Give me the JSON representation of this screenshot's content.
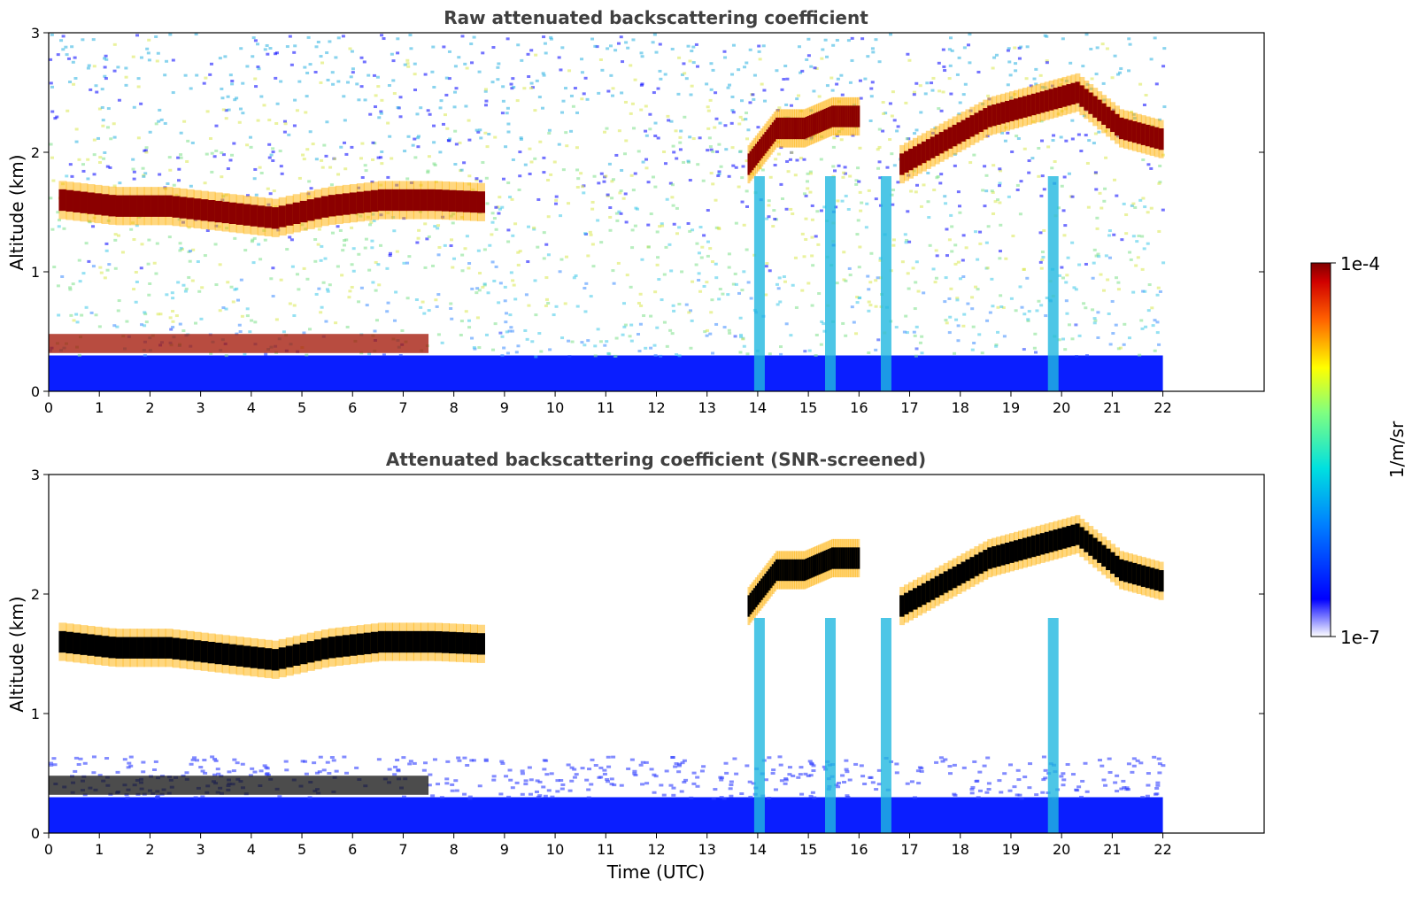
{
  "chart_data": [
    {
      "type": "heatmap",
      "title": "Raw attenuated backscattering coefficient",
      "xlabel": "",
      "ylabel": "Altitude (km)",
      "xlim": [
        0,
        24
      ],
      "ylim": [
        0,
        3
      ],
      "xticks": [
        "0",
        "1",
        "2",
        "3",
        "4",
        "5",
        "6",
        "7",
        "8",
        "9",
        "10",
        "11",
        "12",
        "13",
        "14",
        "15",
        "16",
        "17",
        "18",
        "19",
        "20",
        "21",
        "22"
      ],
      "yticks": [
        "0",
        "1",
        "2",
        "3"
      ],
      "data_end_time": 22,
      "features": {
        "boundary_layer_top_km": 0.3,
        "clouds": [
          {
            "t0": 0.2,
            "t1": 8.6,
            "alt": [
              1.6,
              1.55,
              1.55,
              1.5,
              1.45,
              1.55,
              1.6,
              1.6,
              1.58
            ]
          },
          {
            "t0": 13.8,
            "t1": 16.0,
            "alt": [
              1.9,
              2.2,
              2.2,
              2.3,
              2.3
            ]
          },
          {
            "t0": 16.8,
            "t1": 22.0,
            "alt": [
              1.9,
              2.1,
              2.3,
              2.4,
              2.5,
              2.2,
              2.1
            ]
          }
        ],
        "low_aerosol_layer": {
          "t0": 0.0,
          "t1": 7.5,
          "alt_km": 0.4
        },
        "precipitation_shafts_utc": [
          14.0,
          15.4,
          16.5,
          19.8
        ]
      }
    },
    {
      "type": "heatmap",
      "title": "Attenuated backscattering coefficient (SNR-screened)",
      "xlabel": "Time (UTC)",
      "ylabel": "Altitude (km)",
      "xlim": [
        0,
        24
      ],
      "ylim": [
        0,
        3
      ],
      "xticks": [
        "0",
        "1",
        "2",
        "3",
        "4",
        "5",
        "6",
        "7",
        "8",
        "9",
        "10",
        "11",
        "12",
        "13",
        "14",
        "15",
        "16",
        "17",
        "18",
        "19",
        "20",
        "21",
        "22"
      ],
      "yticks": [
        "0",
        "1",
        "2",
        "3"
      ],
      "data_end_time": 22,
      "screened": true
    }
  ],
  "colorbar": {
    "label": "1/m/sr",
    "min_label": "1e-7",
    "max_label": "1e-4",
    "colormap": "jet"
  },
  "colors": {
    "title": "#404040",
    "cloud_saturated": "#000000",
    "cloud_core": "#8b0000",
    "background_noise": "#0000ff"
  }
}
